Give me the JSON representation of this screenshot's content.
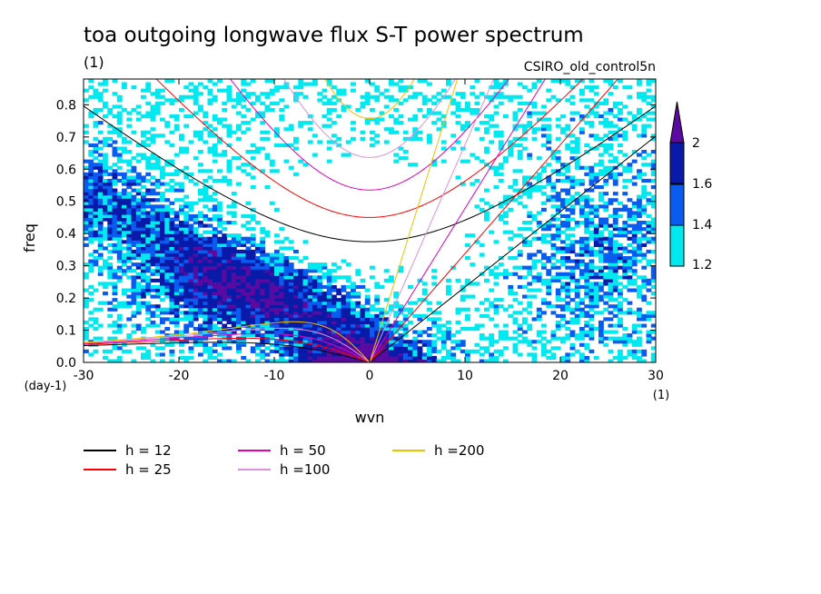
{
  "header": {
    "title": "toa outgoing longwave flux S-T power spectrum",
    "units": "(1)",
    "model": "CSIRO_old_control5n"
  },
  "chart_data": {
    "type": "heatmap",
    "title": "toa outgoing longwave flux S-T power spectrum",
    "subtitle": "CSIRO_old_control5n",
    "xlabel": "wvn",
    "xunit": "(1)",
    "ylabel": "freq",
    "yunit": "(day-1)",
    "xlim": [
      -30,
      30
    ],
    "ylim": [
      0,
      0.88
    ],
    "x_ticks": [
      -30,
      -20,
      -10,
      0,
      10,
      20,
      30
    ],
    "x_tick_labels": [
      "-30",
      "-20",
      "-10",
      "0",
      "10",
      "20",
      "30"
    ],
    "y_ticks": [
      0,
      0.1,
      0.2,
      0.3,
      0.4,
      0.5,
      0.6,
      0.7,
      0.8
    ],
    "y_tick_labels": [
      "0.0",
      "0.1",
      "0.2",
      "0.3",
      "0.4",
      "0.5",
      "0.6",
      "0.7",
      "0.8"
    ],
    "color_levels": [
      1.2,
      1.4,
      1.6,
      2
    ],
    "colorbar_labels": [
      "1.2",
      "1.4",
      "1.6",
      "2"
    ],
    "colors": [
      "#ffffff",
      "#00e8f0",
      "#0a5cf0",
      "#0a1aa8",
      "#5a0aa0"
    ],
    "dispersion_legend": [
      {
        "label": "h = 12",
        "h": 12,
        "color": "#000000"
      },
      {
        "label": "h = 25",
        "h": 25,
        "color": "#ff0000"
      },
      {
        "label": "h = 50",
        "h": 50,
        "color": "#e000c0"
      },
      {
        "label": "h =100",
        "h": 100,
        "color": "#e090e0"
      },
      {
        "label": "h =200",
        "h": 200,
        "color": "#f0c000"
      }
    ],
    "grid": false
  }
}
